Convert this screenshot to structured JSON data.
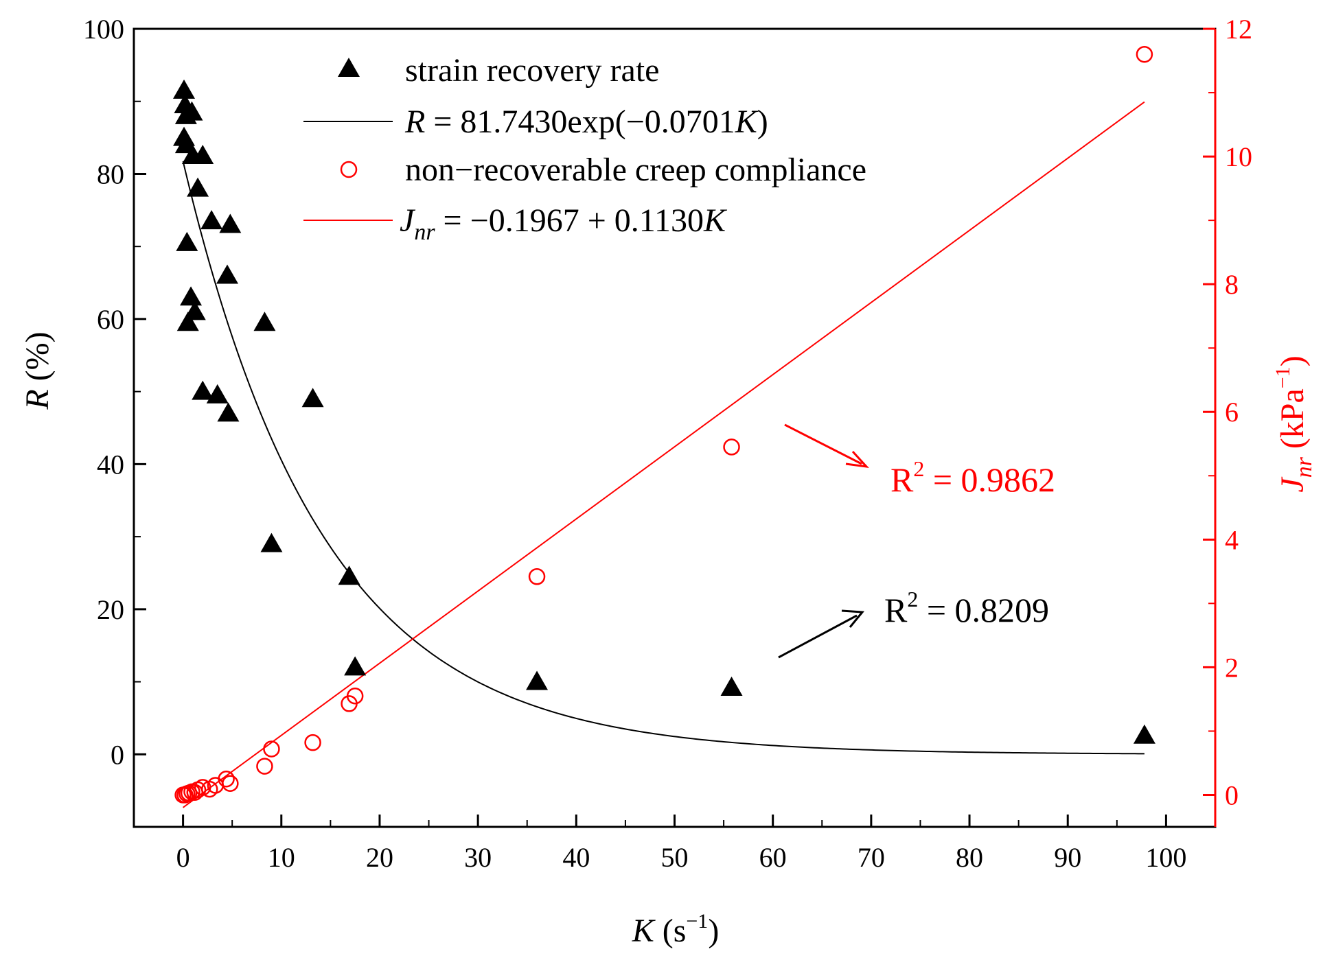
{
  "chart_data": {
    "type": "scatter",
    "x_axis": {
      "label_var": "K",
      "label_unit_prefix": " (s",
      "label_unit_sup": "−1",
      "label_unit_suffix": ")",
      "range": [
        -5,
        105
      ],
      "ticks": [
        0,
        10,
        20,
        30,
        40,
        50,
        60,
        70,
        80,
        90,
        100
      ]
    },
    "y_left": {
      "label_var": "R",
      "label_unit": " (%)",
      "range": [
        -10,
        100
      ],
      "ticks": [
        0,
        20,
        40,
        60,
        80,
        100
      ],
      "color": "#000000"
    },
    "y_right": {
      "label_var": "J",
      "label_sub": "nr",
      "label_unit_prefix": " (kPa",
      "label_unit_sup": "−1",
      "label_unit_suffix": ")",
      "range": [
        -0.5,
        12
      ],
      "ticks": [
        0,
        2,
        4,
        6,
        8,
        10,
        12
      ],
      "color": "#ff0000"
    },
    "series": [
      {
        "name": "strain recovery rate",
        "marker": "triangle",
        "color": "#000000",
        "axis": "left",
        "points": [
          [
            0.1,
            91.5
          ],
          [
            0.2,
            89.5
          ],
          [
            0.3,
            88.0
          ],
          [
            0.1,
            85.0
          ],
          [
            0.3,
            84.0
          ],
          [
            0.9,
            88.5
          ],
          [
            1.0,
            82.5
          ],
          [
            2.0,
            82.5
          ],
          [
            1.5,
            78.0
          ],
          [
            0.4,
            70.5
          ],
          [
            0.8,
            63.0
          ],
          [
            1.2,
            61.0
          ],
          [
            0.5,
            59.5
          ],
          [
            2.9,
            73.5
          ],
          [
            4.8,
            73.0
          ],
          [
            4.5,
            66.0
          ],
          [
            2.0,
            50.0
          ],
          [
            3.5,
            49.5
          ],
          [
            4.6,
            47.0
          ],
          [
            8.3,
            59.5
          ],
          [
            13.2,
            49.0
          ],
          [
            9.0,
            29.0
          ],
          [
            16.9,
            24.5
          ],
          [
            17.5,
            12.0
          ],
          [
            36.0,
            10.0
          ],
          [
            55.8,
            9.2
          ],
          [
            97.8,
            2.6
          ]
        ]
      },
      {
        "name": "R = 81.7430exp(−0.0701K)",
        "type": "curve",
        "color": "#000000",
        "axis": "left",
        "a": 81.743,
        "b": -0.0701,
        "x_range": [
          0,
          97.8
        ]
      },
      {
        "name": "non−recoverable creep compliance",
        "marker": "circle",
        "color": "#ff0000",
        "axis": "right",
        "points": [
          [
            0.0,
            0.0
          ],
          [
            0.2,
            0.0
          ],
          [
            0.4,
            0.02
          ],
          [
            0.6,
            0.03
          ],
          [
            0.9,
            0.05
          ],
          [
            1.2,
            0.04
          ],
          [
            1.5,
            0.08
          ],
          [
            2.0,
            0.12
          ],
          [
            2.7,
            0.09
          ],
          [
            3.3,
            0.15
          ],
          [
            4.4,
            0.25
          ],
          [
            4.8,
            0.18
          ],
          [
            8.3,
            0.45
          ],
          [
            9.0,
            0.72
          ],
          [
            13.2,
            0.82
          ],
          [
            16.9,
            1.43
          ],
          [
            17.5,
            1.55
          ],
          [
            36.0,
            3.42
          ],
          [
            55.8,
            5.45
          ],
          [
            97.8,
            11.6
          ]
        ]
      },
      {
        "name": "Jnr = −0.1967 + 0.1130K",
        "type": "line",
        "color": "#ff0000",
        "axis": "right",
        "intercept": -0.1967,
        "slope": 0.113,
        "x_range": [
          0,
          97.8
        ]
      }
    ],
    "legend": {
      "position": "top-center",
      "items": [
        {
          "marker": "triangle",
          "color": "#000000",
          "text": "strain recovery rate"
        },
        {
          "line": true,
          "color": "#000000",
          "var": "R",
          "text": " = 81.7430exp(−0.0701",
          "var2": "K",
          "text2": ")"
        },
        {
          "marker": "circle",
          "color": "#ff0000",
          "text": "non−recoverable creep compliance"
        },
        {
          "line": true,
          "color": "#ff0000",
          "var": "J",
          "sub": "nr",
          "text": " = −0.1967 + 0.1130",
          "var2": "K",
          "text2": ""
        }
      ]
    },
    "annotations": [
      {
        "text": "R",
        "sup": "2",
        "value": " = 0.9862",
        "color": "#ff0000"
      },
      {
        "text": "R",
        "sup": "2",
        "value": " = 0.8209",
        "color": "#000000"
      }
    ]
  }
}
